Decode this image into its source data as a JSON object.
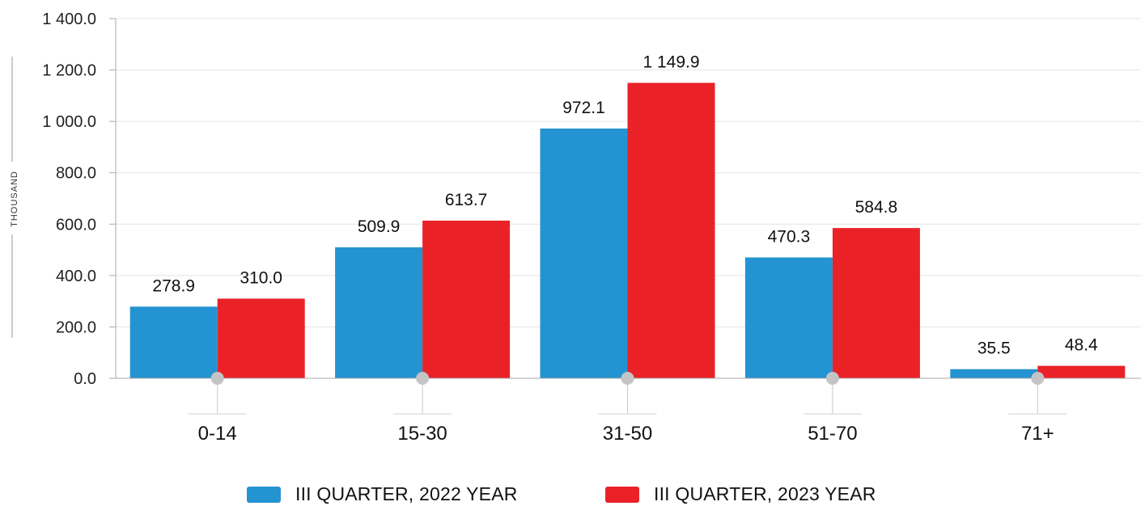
{
  "chart_data": {
    "type": "bar",
    "ylabel": "THOUSAND",
    "ylim": [
      0,
      1400
    ],
    "yticks": [
      0,
      200,
      400,
      600,
      800,
      1000,
      1200,
      1400
    ],
    "ytick_labels": [
      "0.0",
      "200.0",
      "400.0",
      "600.0",
      "800.0",
      "1 000.0",
      "1 200.0",
      "1 400.0"
    ],
    "categories": [
      "0-14",
      "15-30",
      "31-50",
      "51-70",
      "71+"
    ],
    "grid": true,
    "legend_position": "bottom",
    "series": [
      {
        "name": "III QUARTER, 2022 YEAR",
        "color": "#2493d1",
        "values": [
          278.9,
          509.9,
          972.1,
          470.3,
          35.5
        ],
        "labels": [
          "278.9",
          "509.9",
          "972.1",
          "470.3",
          "35.5"
        ]
      },
      {
        "name": "III QUARTER, 2023 YEAR",
        "color": "#ea2228",
        "values": [
          310.0,
          613.7,
          1149.9,
          584.8,
          48.4
        ],
        "labels": [
          "310.0",
          "613.7",
          "1 149.9",
          "584.8",
          "48.4"
        ]
      }
    ]
  }
}
